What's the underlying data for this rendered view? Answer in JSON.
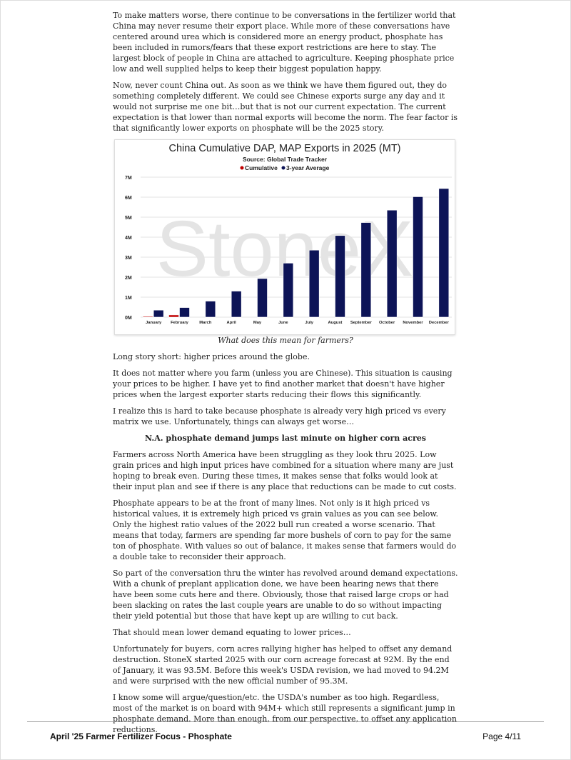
{
  "paragraphs_top": [
    "To make matters worse, there continue to be conversations in the fertilizer world that China may never resume their export place.  While more of these conversations have centered around urea which is considered more an energy product, phosphate has been included in rumors/fears that these export restrictions are here to stay.  The largest block of people in China are attached to agriculture.  Keeping phosphate price low and well supplied helps to keep their biggest population happy.",
    "Now, never count China out.  As soon as we think we have them figured out, they do something completely different.  We could see Chinese exports surge any day and it would not surprise me one bit…but that is not our current expectation.  The current expectation is that lower than normal exports will become the norm.  The fear factor is that significantly lower exports on phosphate will be the 2025 story."
  ],
  "chart_data": {
    "type": "bar",
    "title": "China Cumulative DAP, MAP Exports in 2025 (MT)",
    "subtitle": "Source: Global Trade Tracker",
    "legend_position": "top-center",
    "categories": [
      "January",
      "February",
      "March",
      "April",
      "May",
      "June",
      "July",
      "August",
      "September",
      "October",
      "November",
      "December"
    ],
    "series": [
      {
        "name": "Cumulative",
        "color": "#c00000",
        "values": [
          0.04,
          0.11,
          null,
          null,
          null,
          null,
          null,
          null,
          null,
          null,
          null,
          null
        ]
      },
      {
        "name": "3-year Average",
        "color": "#0d1457",
        "values": [
          0.35,
          0.48,
          0.8,
          1.3,
          1.93,
          2.7,
          3.35,
          4.08,
          4.73,
          5.35,
          6.02,
          6.43
        ]
      }
    ],
    "yticks": [
      "0M",
      "1M",
      "2M",
      "3M",
      "4M",
      "5M",
      "6M",
      "7M"
    ],
    "ylim": [
      0,
      7
    ],
    "yunit": "million MT",
    "grid": true,
    "watermark": "StoneX"
  },
  "caption": "What does this mean for farmers?",
  "paragraphs_mid": [
    "Long story short:  higher prices around the globe.",
    "It does not matter where you farm (unless you are Chinese).  This situation is causing your prices to be higher.  I have yet to find another market that doesn't have higher prices when the largest exporter starts reducing their flows this significantly.",
    "I realize this is hard to take because phosphate is already very high priced vs every matrix we use.  Unfortunately, things can always get worse…"
  ],
  "heading": "N.A. phosphate demand jumps last minute on higher corn acres",
  "paragraphs_bottom": [
    "Farmers across North America have been struggling as they look thru 2025.  Low grain prices and high input prices have combined for a situation where many are just hoping to break even.  During these times, it makes sense that folks would look at their input plan and see if there is any place that reductions can be made to cut costs.",
    "Phosphate appears to be at the front of many lines.  Not only is it high priced vs historical values, it is extremely high priced vs grain values as you can see below.  Only the highest ratio values of the 2022 bull run created a worse scenario.  That means that today, farmers are spending far more bushels of corn to pay for the same ton of phosphate.  With values so out of balance, it makes sense that farmers would do a double take to reconsider their approach.",
    "So part of the conversation thru the winter has revolved around demand expectations.  With a chunk of preplant application done, we have been hearing news that there have been some cuts here and there.  Obviously, those that raised large crops or had been slacking on rates the last couple years are unable to do so without impacting their yield potential but those that have kept up are willing to cut back.",
    "That should mean lower demand equating to lower prices…",
    "Unfortunately for buyers, corn acres rallying higher has helped to offset any demand destruction.  StoneX started 2025 with our corn acreage forecast at 92M.  By the end of January, it was 93.5M.  Before this week's USDA revision, we had moved to 94.2M and were surprised with the new official number of 95.3M.",
    "I know some will argue/question/etc. the USDA's number as too high.  Regardless, most of the market is on board with 94M+ which still represents a significant jump in phosphate demand.  More than enough, from our perspective, to offset any application reductions."
  ],
  "footer": {
    "title": "April '25 Farmer Fertilizer Focus - Phosphate",
    "page": "Page 4/11"
  }
}
